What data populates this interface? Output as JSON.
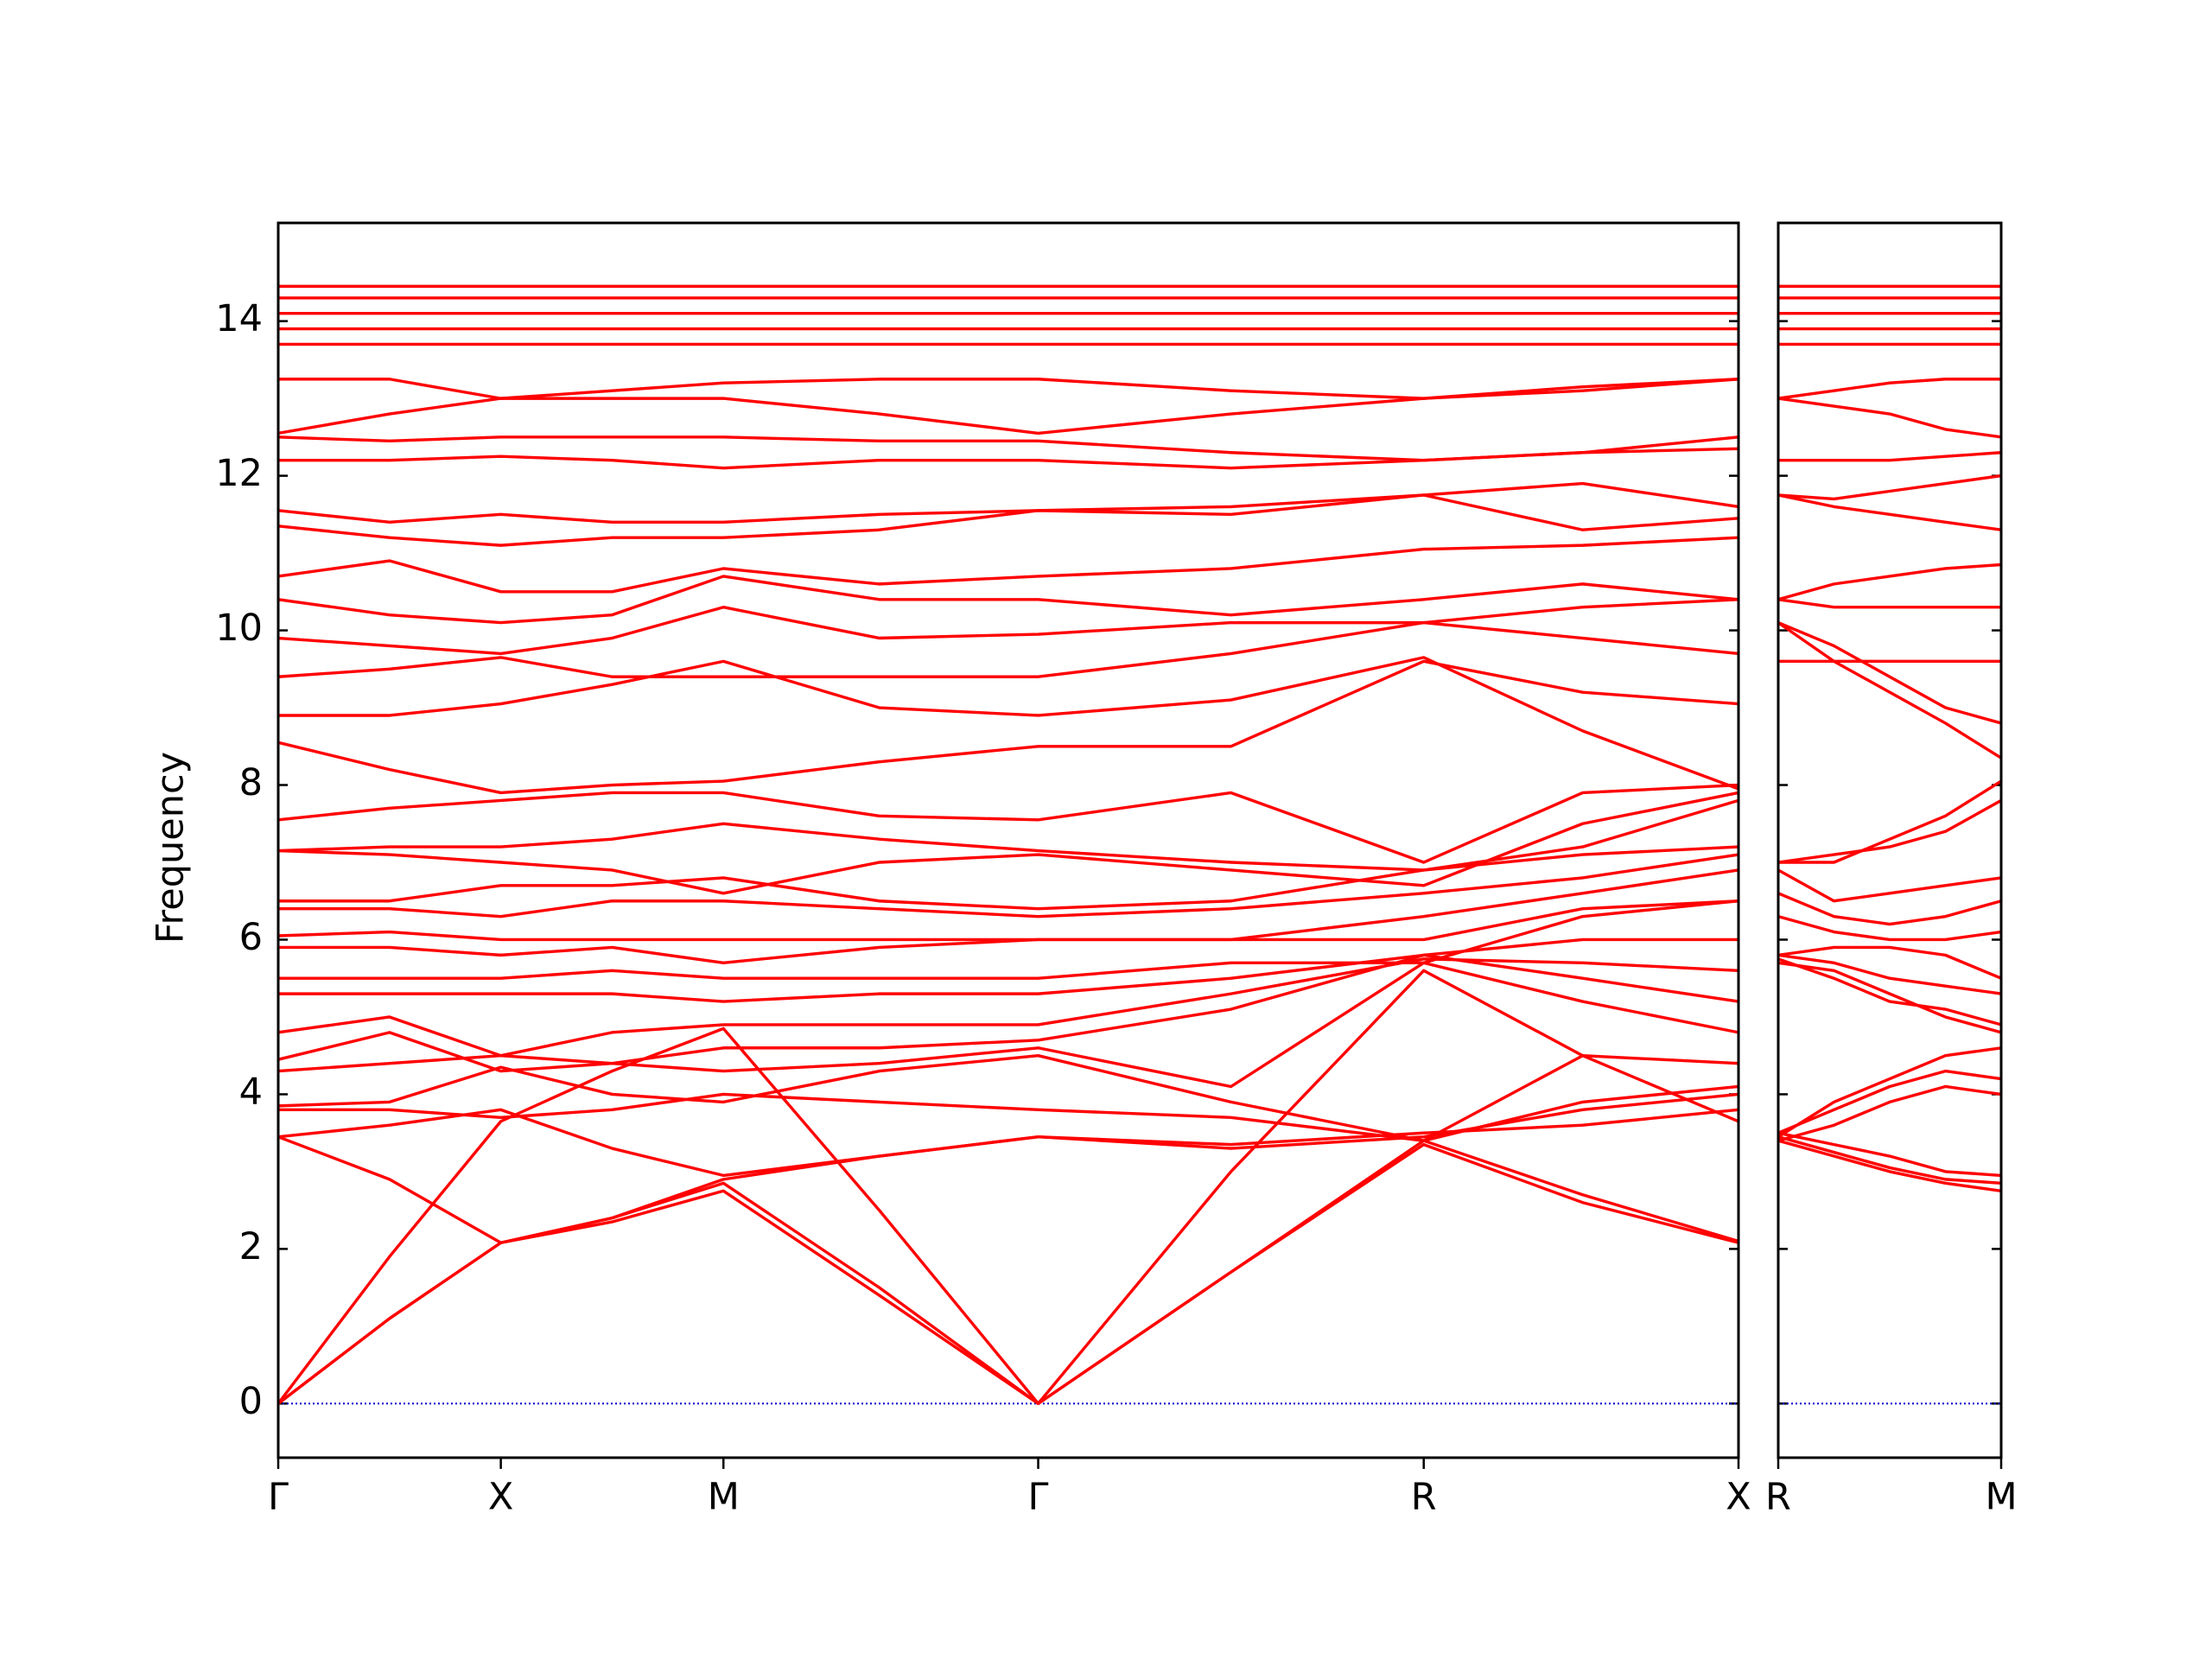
{
  "chart_data": [
    {
      "type": "line",
      "ylabel": "Frequency",
      "color": "#ff0000",
      "grid": false,
      "xlim": [
        0,
        3.28
      ],
      "ylim": [
        -0.7,
        15.27
      ],
      "xticks": [
        {
          "value": 0,
          "label": "Γ"
        },
        {
          "value": 0.5,
          "label": "X"
        },
        {
          "value": 1.0,
          "label": "M"
        },
        {
          "value": 1.707,
          "label": "Γ"
        },
        {
          "value": 2.573,
          "label": "R"
        },
        {
          "value": 3.28,
          "label": "X"
        }
      ],
      "yticks": [
        0,
        2,
        4,
        6,
        8,
        10,
        12,
        14
      ],
      "hlines": [
        {
          "y": 0,
          "color": "#0000cc",
          "dash": "dotted"
        }
      ],
      "x": [
        0,
        0.25,
        0.5,
        0.75,
        1.0,
        1.35,
        1.707,
        2.14,
        2.573,
        2.93,
        3.28
      ],
      "series": [
        {
          "values": [
            0,
            1.1,
            2.08,
            2.35,
            2.75,
            1.4,
            0,
            1.7,
            3.35,
            2.6,
            2.08
          ]
        },
        {
          "values": [
            0,
            1.1,
            2.08,
            2.4,
            2.85,
            1.5,
            0,
            1.7,
            3.4,
            2.7,
            2.1
          ]
        },
        {
          "values": [
            0,
            1.9,
            3.65,
            4.3,
            4.85,
            2.5,
            0,
            3.0,
            5.6,
            4.5,
            3.65
          ]
        },
        {
          "values": [
            3.45,
            2.9,
            2.08,
            2.4,
            2.9,
            3.2,
            3.45,
            3.3,
            3.45,
            3.8,
            4.0
          ]
        },
        {
          "values": [
            3.45,
            3.6,
            3.8,
            3.3,
            2.95,
            3.2,
            3.45,
            3.35,
            3.5,
            3.6,
            3.8
          ]
        },
        {
          "values": [
            3.8,
            3.8,
            3.7,
            3.8,
            4.0,
            3.9,
            3.8,
            3.7,
            3.4,
            3.9,
            4.1
          ]
        },
        {
          "values": [
            3.85,
            3.9,
            4.35,
            4.0,
            3.9,
            4.3,
            4.5,
            3.9,
            3.4,
            4.5,
            4.4
          ]
        },
        {
          "values": [
            4.3,
            4.4,
            4.5,
            4.4,
            4.3,
            4.4,
            4.6,
            4.1,
            5.7,
            5.2,
            4.8
          ]
        },
        {
          "values": [
            4.45,
            4.8,
            4.3,
            4.4,
            4.6,
            4.6,
            4.7,
            5.1,
            5.8,
            5.5,
            5.2
          ]
        },
        {
          "values": [
            4.8,
            5.0,
            4.5,
            4.8,
            4.9,
            4.9,
            4.9,
            5.3,
            5.75,
            5.7,
            5.6
          ]
        },
        {
          "values": [
            5.3,
            5.3,
            5.3,
            5.3,
            5.2,
            5.3,
            5.3,
            5.5,
            5.8,
            6.0,
            6.0
          ]
        },
        {
          "values": [
            5.5,
            5.5,
            5.5,
            5.6,
            5.5,
            5.5,
            5.5,
            5.7,
            5.7,
            6.3,
            6.5
          ]
        },
        {
          "values": [
            5.9,
            5.9,
            5.8,
            5.9,
            5.7,
            5.9,
            6.0,
            6.0,
            6.0,
            6.4,
            6.5
          ]
        },
        {
          "values": [
            6.05,
            6.1,
            6.0,
            6.0,
            6.0,
            6.0,
            6.0,
            6.0,
            6.3,
            6.6,
            6.9
          ]
        },
        {
          "values": [
            6.4,
            6.4,
            6.3,
            6.5,
            6.5,
            6.4,
            6.3,
            6.4,
            6.6,
            6.8,
            7.1
          ]
        },
        {
          "values": [
            6.5,
            6.5,
            6.7,
            6.7,
            6.8,
            6.5,
            6.4,
            6.5,
            6.9,
            7.2,
            7.8
          ]
        },
        {
          "values": [
            7.15,
            7.1,
            7.0,
            6.9,
            6.6,
            7.0,
            7.1,
            6.9,
            6.7,
            7.5,
            7.9
          ]
        },
        {
          "values": [
            7.15,
            7.2,
            7.2,
            7.3,
            7.5,
            7.3,
            7.15,
            7.0,
            6.9,
            7.1,
            7.2
          ]
        },
        {
          "values": [
            7.55,
            7.7,
            7.8,
            7.9,
            7.9,
            7.6,
            7.55,
            7.9,
            7.0,
            7.9,
            8.0
          ]
        },
        {
          "values": [
            8.55,
            8.2,
            7.9,
            8.0,
            8.05,
            8.3,
            8.5,
            8.5,
            9.6,
            9.2,
            9.05
          ]
        },
        {
          "values": [
            8.9,
            8.9,
            9.05,
            9.3,
            9.6,
            9.0,
            8.9,
            9.1,
            9.65,
            8.7,
            7.95
          ]
        },
        {
          "values": [
            9.4,
            9.5,
            9.65,
            9.4,
            9.4,
            9.4,
            9.4,
            9.7,
            10.1,
            9.9,
            9.7
          ]
        },
        {
          "values": [
            9.9,
            9.8,
            9.7,
            9.9,
            10.3,
            9.9,
            9.95,
            10.1,
            10.1,
            10.3,
            10.4
          ]
        },
        {
          "values": [
            10.4,
            10.2,
            10.1,
            10.2,
            10.7,
            10.4,
            10.4,
            10.2,
            10.4,
            10.6,
            10.4
          ]
        },
        {
          "values": [
            10.7,
            10.9,
            10.5,
            10.5,
            10.8,
            10.6,
            10.7,
            10.8,
            11.05,
            11.1,
            11.2
          ]
        },
        {
          "values": [
            11.35,
            11.2,
            11.1,
            11.2,
            11.2,
            11.3,
            11.55,
            11.6,
            11.75,
            11.3,
            11.45
          ]
        },
        {
          "values": [
            11.55,
            11.4,
            11.5,
            11.4,
            11.4,
            11.5,
            11.55,
            11.5,
            11.75,
            11.9,
            11.6
          ]
        },
        {
          "values": [
            12.2,
            12.2,
            12.25,
            12.2,
            12.1,
            12.2,
            12.2,
            12.1,
            12.2,
            12.3,
            12.35
          ]
        },
        {
          "values": [
            12.5,
            12.45,
            12.5,
            12.5,
            12.5,
            12.45,
            12.45,
            12.3,
            12.2,
            12.3,
            12.5
          ]
        },
        {
          "values": [
            12.55,
            12.8,
            13.0,
            13.0,
            13.0,
            12.8,
            12.55,
            12.8,
            13.0,
            13.1,
            13.25
          ]
        },
        {
          "values": [
            13.25,
            13.25,
            13.0,
            13.1,
            13.2,
            13.25,
            13.25,
            13.1,
            13.0,
            13.15,
            13.25
          ]
        },
        {
          "values": [
            13.7,
            13.7,
            13.7,
            13.7,
            13.7,
            13.7,
            13.7,
            13.7,
            13.7,
            13.7,
            13.7
          ]
        },
        {
          "values": [
            13.9,
            13.9,
            13.9,
            13.9,
            13.9,
            13.9,
            13.9,
            13.9,
            13.9,
            13.9,
            13.9
          ]
        },
        {
          "values": [
            14.1,
            14.1,
            14.1,
            14.1,
            14.1,
            14.1,
            14.1,
            14.1,
            14.1,
            14.1,
            14.1
          ]
        },
        {
          "values": [
            14.3,
            14.3,
            14.3,
            14.3,
            14.3,
            14.3,
            14.3,
            14.3,
            14.3,
            14.3,
            14.3
          ]
        },
        {
          "values": [
            14.45,
            14.45,
            14.45,
            14.45,
            14.45,
            14.45,
            14.45,
            14.45,
            14.45,
            14.45,
            14.45
          ]
        }
      ]
    },
    {
      "type": "line",
      "color": "#ff0000",
      "xlim": [
        0,
        0.5
      ],
      "ylim": [
        -0.7,
        15.27
      ],
      "xticks": [
        {
          "value": 0,
          "label": "R"
        },
        {
          "value": 0.5,
          "label": "M"
        }
      ],
      "hlines": [
        {
          "y": 0,
          "color": "#0000cc",
          "dash": "dotted"
        }
      ],
      "x": [
        0,
        0.125,
        0.25,
        0.375,
        0.5
      ],
      "series": [
        {
          "values": [
            3.4,
            3.2,
            3.0,
            2.85,
            2.75
          ]
        },
        {
          "values": [
            3.45,
            3.25,
            3.05,
            2.9,
            2.85
          ]
        },
        {
          "values": [
            3.5,
            3.35,
            3.2,
            3.0,
            2.95
          ]
        },
        {
          "values": [
            3.4,
            3.6,
            3.9,
            4.1,
            4.0
          ]
        },
        {
          "values": [
            3.5,
            3.8,
            4.1,
            4.3,
            4.2
          ]
        },
        {
          "values": [
            3.45,
            3.9,
            4.2,
            4.5,
            4.6
          ]
        },
        {
          "values": [
            5.7,
            5.6,
            5.3,
            5.0,
            4.8
          ]
        },
        {
          "values": [
            5.75,
            5.5,
            5.2,
            5.1,
            4.9
          ]
        },
        {
          "values": [
            5.8,
            5.7,
            5.5,
            5.4,
            5.3
          ]
        },
        {
          "values": [
            5.8,
            5.9,
            5.9,
            5.8,
            5.5
          ]
        },
        {
          "values": [
            6.3,
            6.1,
            6.0,
            6.0,
            6.1
          ]
        },
        {
          "values": [
            6.6,
            6.3,
            6.2,
            6.3,
            6.5
          ]
        },
        {
          "values": [
            6.9,
            6.5,
            6.6,
            6.7,
            6.8
          ]
        },
        {
          "values": [
            7.0,
            7.1,
            7.2,
            7.4,
            7.8
          ]
        },
        {
          "values": [
            7.0,
            7.0,
            7.3,
            7.6,
            8.05
          ]
        },
        {
          "values": [
            9.6,
            9.6,
            9.6,
            9.6,
            9.6
          ]
        },
        {
          "values": [
            10.1,
            9.6,
            9.2,
            8.8,
            8.35
          ]
        },
        {
          "values": [
            10.1,
            9.8,
            9.4,
            9.0,
            8.8
          ]
        },
        {
          "values": [
            10.4,
            10.3,
            10.3,
            10.3,
            10.3
          ]
        },
        {
          "values": [
            10.4,
            10.6,
            10.7,
            10.8,
            10.85
          ]
        },
        {
          "values": [
            11.75,
            11.6,
            11.5,
            11.4,
            11.3
          ]
        },
        {
          "values": [
            11.75,
            11.7,
            11.8,
            11.9,
            12.0
          ]
        },
        {
          "values": [
            12.2,
            12.2,
            12.2,
            12.25,
            12.3
          ]
        },
        {
          "values": [
            13.0,
            12.9,
            12.8,
            12.6,
            12.5
          ]
        },
        {
          "values": [
            13.0,
            13.1,
            13.2,
            13.25,
            13.25
          ]
        },
        {
          "values": [
            13.7,
            13.7,
            13.7,
            13.7,
            13.7
          ]
        },
        {
          "values": [
            13.9,
            13.9,
            13.9,
            13.9,
            13.9
          ]
        },
        {
          "values": [
            14.1,
            14.1,
            14.1,
            14.1,
            14.1
          ]
        },
        {
          "values": [
            14.3,
            14.3,
            14.3,
            14.3,
            14.3
          ]
        },
        {
          "values": [
            14.45,
            14.45,
            14.45,
            14.45,
            14.45
          ]
        }
      ]
    }
  ]
}
